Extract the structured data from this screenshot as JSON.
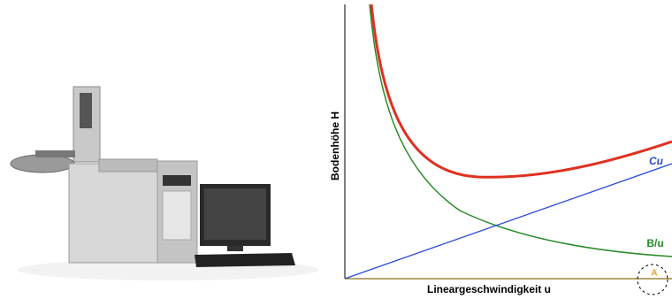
{
  "diagram": {
    "y_axis_label": "Bodenhöhe H",
    "x_axis_label": "Lineargeschwindigkeit u",
    "curves": {
      "cu": "Cu",
      "b_over_u": "B/u",
      "a": "A"
    }
  }
}
